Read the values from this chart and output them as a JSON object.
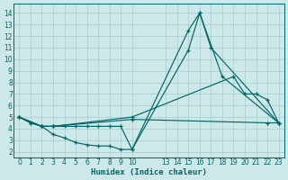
{
  "xlabel": "Humidex (Indice chaleur)",
  "bg_color": "#cde8e8",
  "grid_color": "#a8cccc",
  "line_color": "#006666",
  "xlim": [
    -0.5,
    23.5
  ],
  "ylim": [
    1.5,
    14.8
  ],
  "xticks": [
    0,
    1,
    2,
    3,
    4,
    5,
    6,
    7,
    8,
    9,
    10,
    13,
    14,
    15,
    16,
    17,
    18,
    19,
    20,
    21,
    22,
    23
  ],
  "yticks": [
    2,
    3,
    4,
    5,
    6,
    7,
    8,
    9,
    10,
    11,
    12,
    13,
    14
  ],
  "lines": [
    {
      "x": [
        0,
        1,
        2,
        3,
        4,
        5,
        6,
        7,
        8,
        9,
        10,
        15,
        16,
        17,
        23
      ],
      "y": [
        5.0,
        4.5,
        4.2,
        4.2,
        4.2,
        4.2,
        4.2,
        4.2,
        4.2,
        4.2,
        2.2,
        10.8,
        14.0,
        11.0,
        4.5
      ]
    },
    {
      "x": [
        0,
        1,
        2,
        3,
        4,
        5,
        6,
        7,
        8,
        9,
        10,
        15,
        16,
        18,
        23
      ],
      "y": [
        5.0,
        4.5,
        4.2,
        3.5,
        3.2,
        2.8,
        2.6,
        2.5,
        2.5,
        2.2,
        2.2,
        12.5,
        14.0,
        8.5,
        4.5
      ]
    },
    {
      "x": [
        0,
        2,
        3,
        10,
        19,
        20,
        21,
        22,
        23
      ],
      "y": [
        5.0,
        4.2,
        4.2,
        5.0,
        8.5,
        7.0,
        7.0,
        6.5,
        4.5
      ]
    },
    {
      "x": [
        0,
        2,
        3,
        10,
        22,
        23
      ],
      "y": [
        5.0,
        4.2,
        4.2,
        4.8,
        4.5,
        4.5
      ]
    }
  ]
}
